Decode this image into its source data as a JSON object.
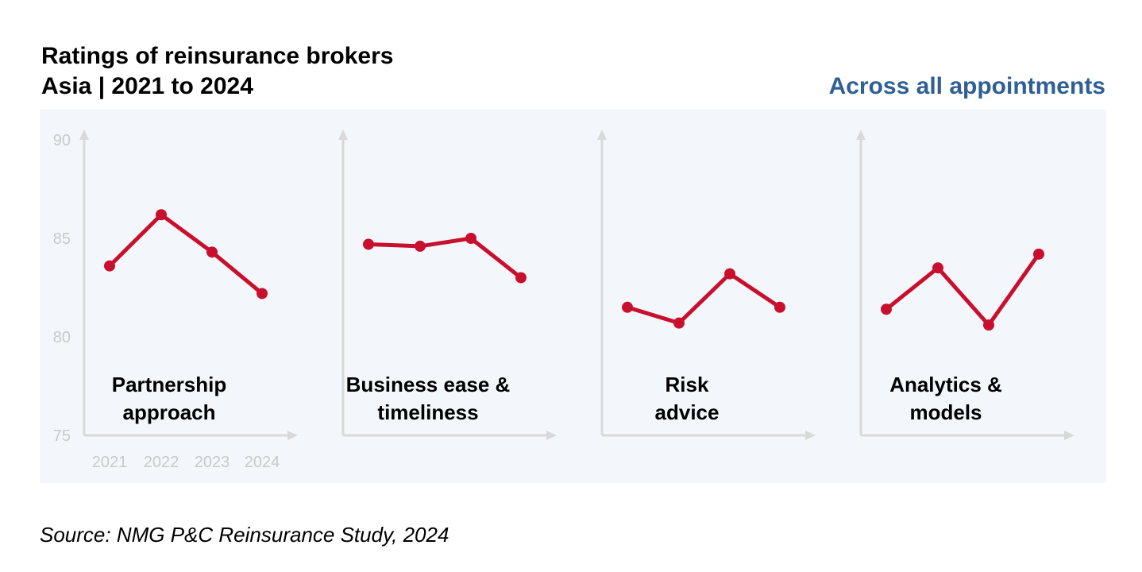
{
  "title_line1": "Ratings of reinsurance brokers",
  "title_line2": "Asia | 2021 to 2024",
  "subtitle": "Across all appointments",
  "source": "Source: NMG P&C Reinsurance Study, 2024",
  "colors": {
    "line": "#c8102e",
    "panel_bg": "#f3f7fb",
    "axis": "#d9d9d9",
    "tick_text": "#c9c9c9",
    "subtitle": "#2e5f95"
  },
  "chart_data": {
    "type": "line",
    "x": [
      "2021",
      "2022",
      "2023",
      "2024"
    ],
    "ylim": [
      75,
      90
    ],
    "yticks": [
      75,
      80,
      85,
      90
    ],
    "grid": false,
    "panels": [
      {
        "label_lines": [
          "Partnership",
          "approach"
        ],
        "values": [
          83.6,
          86.2,
          84.3,
          82.2
        ]
      },
      {
        "label_lines": [
          "Business ease &",
          "timeliness"
        ],
        "values": [
          84.7,
          84.6,
          85.0,
          83.0
        ]
      },
      {
        "label_lines": [
          "Risk",
          "advice"
        ],
        "values": [
          81.5,
          80.7,
          83.2,
          81.5
        ]
      },
      {
        "label_lines": [
          "Analytics &",
          "models"
        ],
        "values": [
          81.4,
          83.5,
          80.6,
          84.2
        ]
      }
    ]
  }
}
